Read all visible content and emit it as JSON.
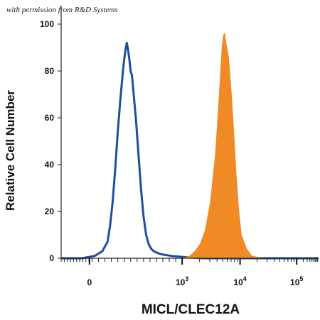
{
  "watermark": "with permission from R&D Systems",
  "chart_data": {
    "type": "area",
    "xlabel": "MICL/CLEC12A",
    "ylabel": "Relative Cell Number",
    "ylim": [
      0,
      100
    ],
    "y_ticks": [
      "0",
      "20",
      "40",
      "60",
      "80",
      "100"
    ],
    "x_ticks": [
      {
        "base": "0",
        "exp": ""
      },
      {
        "base": "10",
        "exp": "3"
      },
      {
        "base": "10",
        "exp": "4"
      },
      {
        "base": "10",
        "exp": "5"
      }
    ],
    "series": [
      {
        "color": "#1f4e9c",
        "style": "outline",
        "x": [
          0.0,
          0.08,
          0.13,
          0.16,
          0.18,
          0.19,
          0.2,
          0.21,
          0.22,
          0.23,
          0.235,
          0.24,
          0.245,
          0.25,
          0.255,
          0.26,
          0.265,
          0.27,
          0.275,
          0.28,
          0.29,
          0.3,
          0.31,
          0.32,
          0.33,
          0.34,
          0.35,
          0.36,
          0.38,
          0.4,
          0.43,
          0.48,
          0.55,
          0.65,
          0.8,
          1.0
        ],
        "y": [
          0,
          0,
          1,
          3,
          7,
          14,
          24,
          38,
          54,
          68,
          74,
          80,
          85,
          89,
          92,
          89,
          85,
          80,
          78,
          72,
          60,
          45,
          30,
          18,
          10,
          6,
          4,
          3,
          2,
          1.5,
          1,
          0.5,
          0,
          0,
          0,
          0
        ]
      },
      {
        "color": "#f08a24",
        "style": "filled",
        "x": [
          0.0,
          0.47,
          0.5,
          0.52,
          0.54,
          0.56,
          0.58,
          0.6,
          0.61,
          0.62,
          0.625,
          0.63,
          0.635,
          0.64,
          0.65,
          0.66,
          0.67,
          0.68,
          0.69,
          0.7,
          0.72,
          0.74,
          0.78,
          1.0
        ],
        "y": [
          0,
          0,
          1,
          3,
          6,
          12,
          24,
          45,
          62,
          80,
          90,
          95,
          96,
          92,
          86,
          72,
          55,
          35,
          20,
          10,
          4,
          1,
          0,
          0
        ]
      }
    ]
  }
}
